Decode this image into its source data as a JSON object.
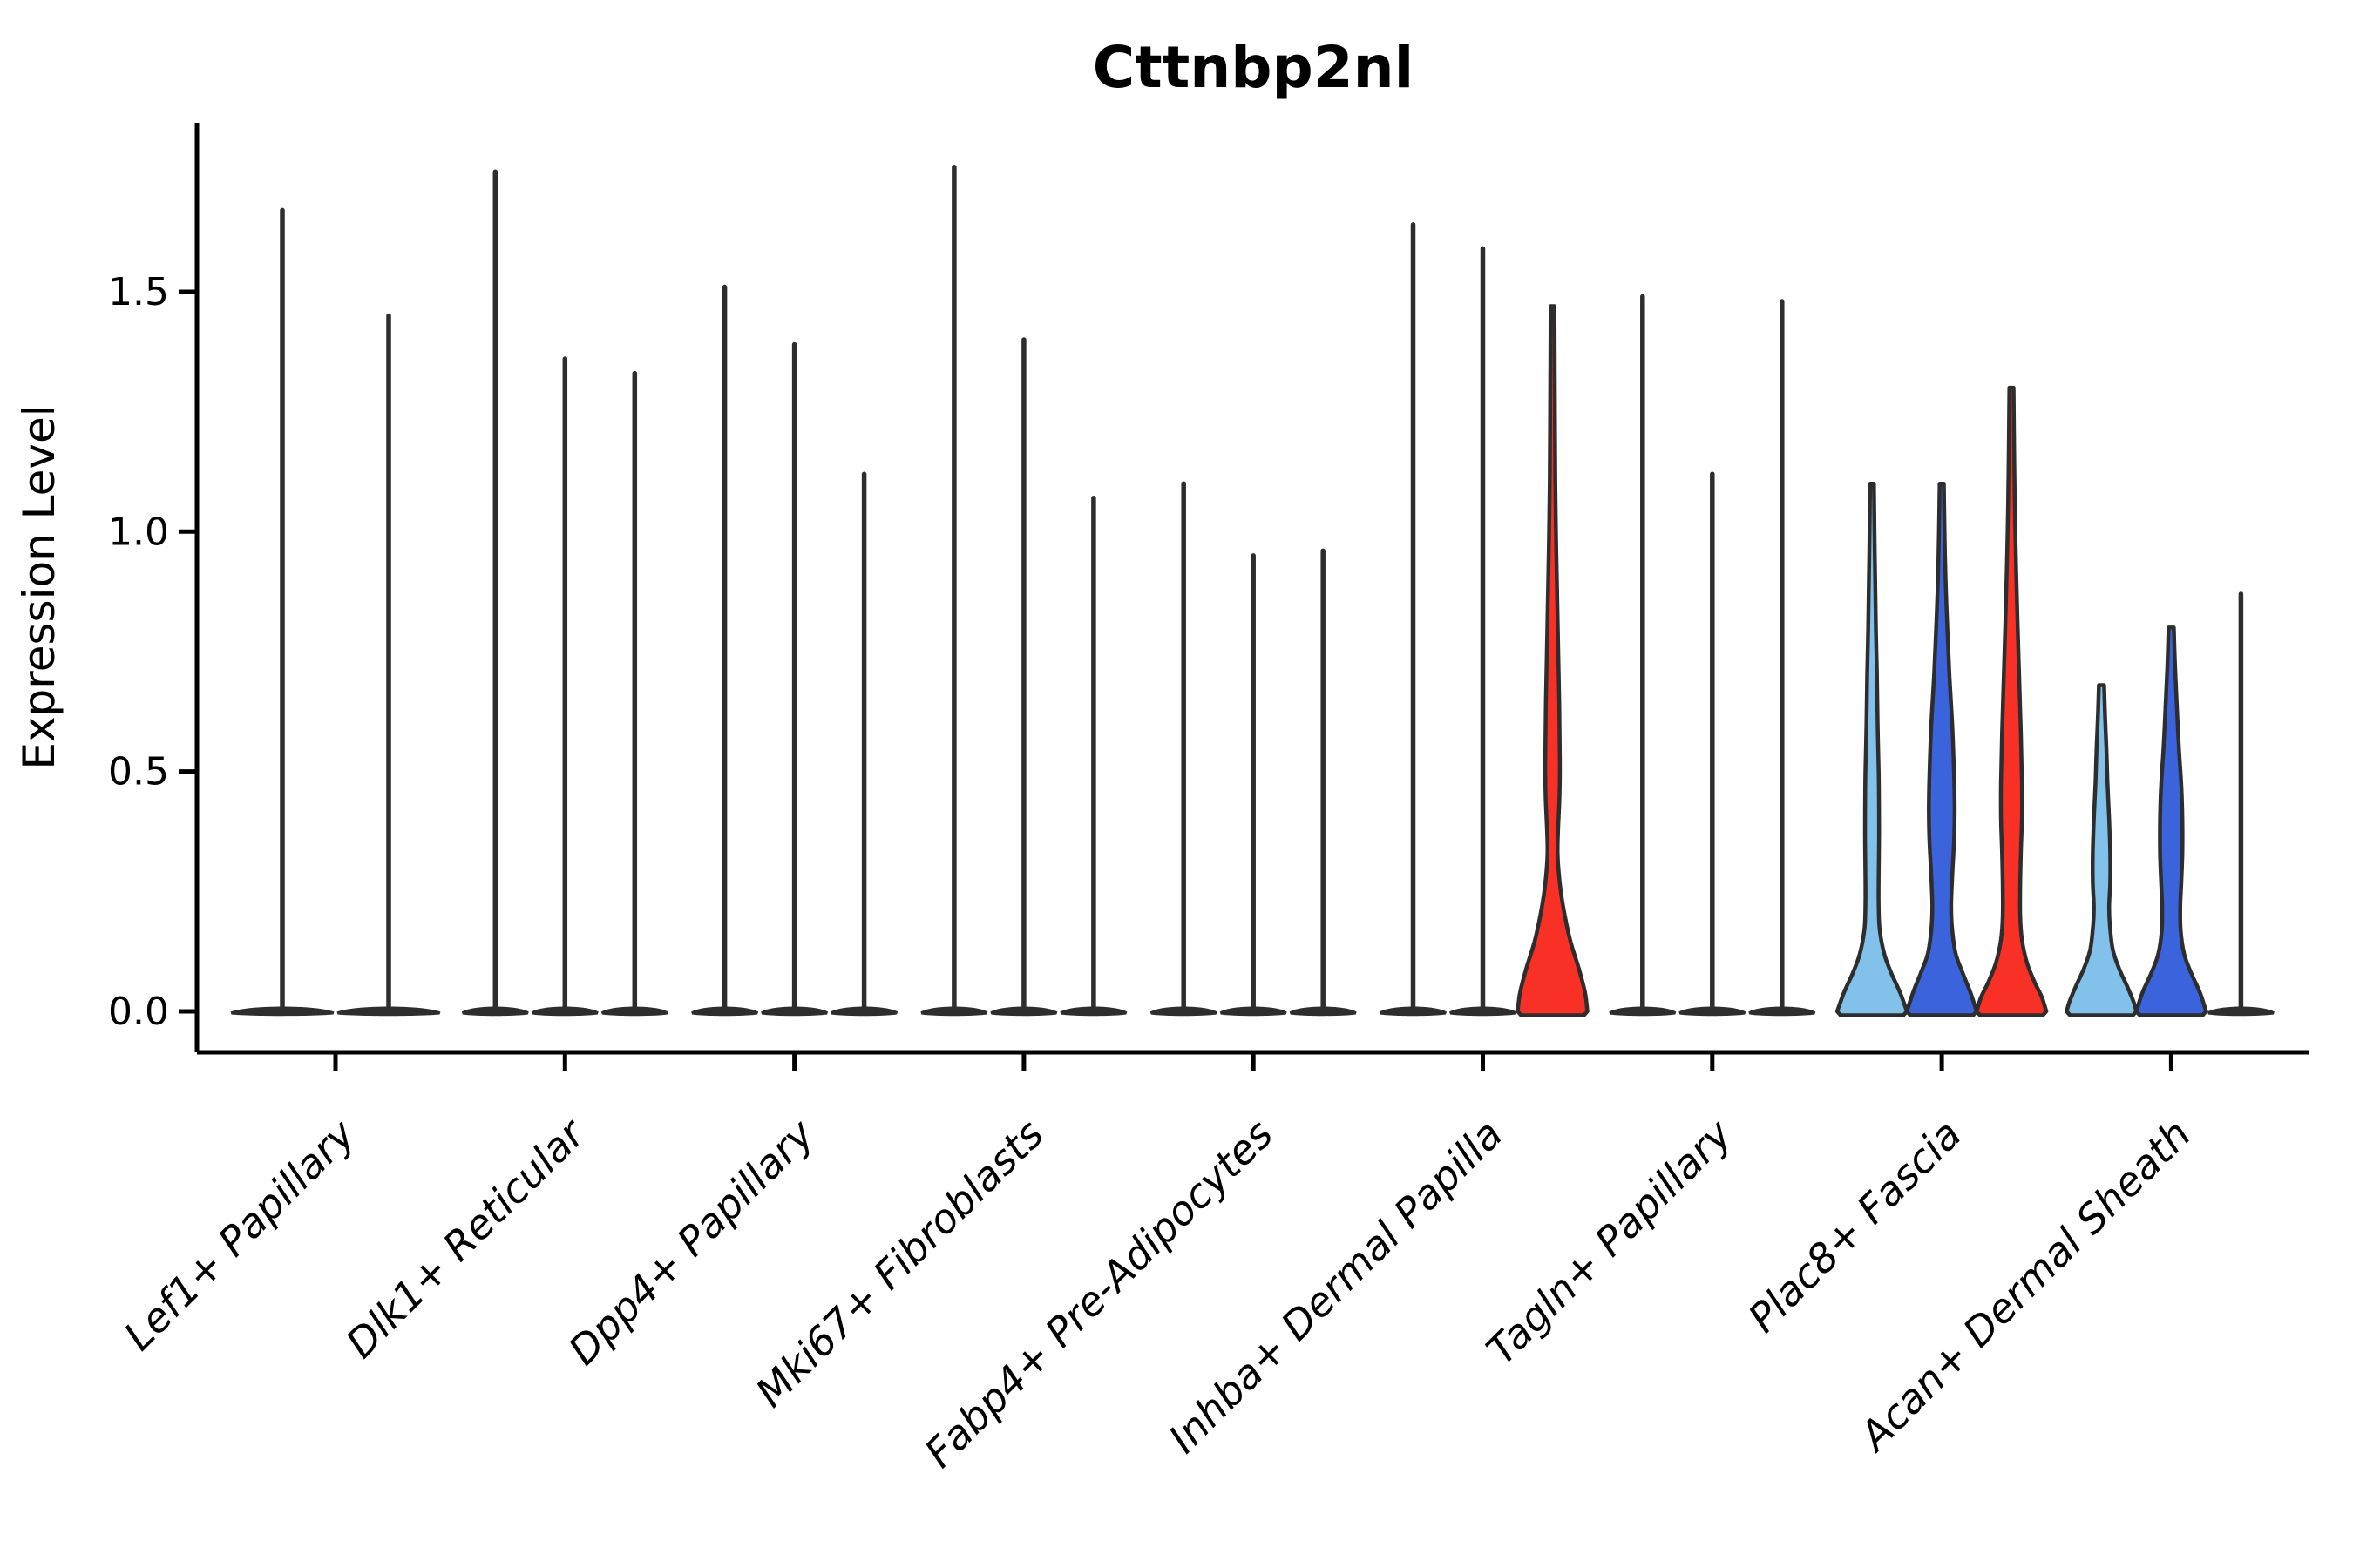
{
  "chart_data": {
    "type": "violin",
    "title": "Cttnbp2nl",
    "ylabel": "Expression Level",
    "xlabel": "",
    "legend": "none",
    "grid": false,
    "ylim": [
      -0.09,
      1.85
    ],
    "ytick_labels": [
      "0.0",
      "0.5",
      "1.0",
      "1.5"
    ],
    "ytick_values": [
      0.0,
      0.5,
      1.0,
      1.5
    ],
    "colors": {
      "slot_fills": [
        "#82C2EA",
        "#3B64DC",
        "#F93026"
      ],
      "outline": "#2D2D2D",
      "axis": "#000000",
      "text": "#000000",
      "background": "#FFFFFF"
    },
    "categories": [
      "Lef1+ Papillary",
      "Dlk1+ Reticular",
      "Dpp4+ Papillary",
      "Mki67+ Fibroblasts",
      "Fabp4+ Pre-Adipocytes",
      "Inhba+ Dermal Papilla",
      "Tagln+ Papillary",
      "Plac8+ Fascia",
      "Acan+ Dermal Sheath"
    ],
    "groups": [
      {
        "label": "Lef1+ Papillary",
        "violins": [
          {
            "slot": 0,
            "max": 1.67,
            "style": "thin"
          },
          {
            "slot": 1,
            "max": 1.45,
            "style": "thin"
          }
        ]
      },
      {
        "label": "Dlk1+ Reticular",
        "violins": [
          {
            "slot": 0,
            "max": 1.75,
            "style": "thin"
          },
          {
            "slot": 1,
            "max": 1.36,
            "style": "thin"
          },
          {
            "slot": 2,
            "max": 1.33,
            "style": "thin"
          }
        ]
      },
      {
        "label": "Dpp4+ Papillary",
        "violins": [
          {
            "slot": 0,
            "max": 1.51,
            "style": "thin"
          },
          {
            "slot": 1,
            "max": 1.39,
            "style": "thin"
          },
          {
            "slot": 2,
            "max": 1.12,
            "style": "thin"
          }
        ]
      },
      {
        "label": "Mki67+ Fibroblasts",
        "violins": [
          {
            "slot": 0,
            "max": 1.76,
            "style": "thin"
          },
          {
            "slot": 1,
            "max": 1.4,
            "style": "thin"
          },
          {
            "slot": 2,
            "max": 1.07,
            "style": "thin"
          }
        ]
      },
      {
        "label": "Fabp4+ Pre-Adipocytes",
        "violins": [
          {
            "slot": 0,
            "max": 1.1,
            "style": "thin"
          },
          {
            "slot": 1,
            "max": 0.95,
            "style": "thin"
          },
          {
            "slot": 2,
            "max": 0.96,
            "style": "thin"
          }
        ]
      },
      {
        "label": "Inhba+ Dermal Papilla",
        "violins": [
          {
            "slot": 0,
            "max": 1.64,
            "style": "thin"
          },
          {
            "slot": 1,
            "max": 1.59,
            "style": "thin"
          },
          {
            "slot": 2,
            "max": 1.47,
            "style": "filled",
            "profile": [
              [
                1.47,
                0.055
              ],
              [
                1.3,
                0.065
              ],
              [
                1.1,
                0.08
              ],
              [
                0.95,
                0.11
              ],
              [
                0.8,
                0.15
              ],
              [
                0.65,
                0.19
              ],
              [
                0.52,
                0.21
              ],
              [
                0.45,
                0.2
              ],
              [
                0.38,
                0.16
              ],
              [
                0.33,
                0.145
              ],
              [
                0.28,
                0.19
              ],
              [
                0.22,
                0.3
              ],
              [
                0.15,
                0.5
              ],
              [
                0.09,
                0.75
              ],
              [
                0.04,
                0.93
              ],
              [
                0.0,
                1.0
              ]
            ]
          }
        ]
      },
      {
        "label": "Tagln+ Papillary",
        "violins": [
          {
            "slot": 0,
            "max": 1.49,
            "style": "thin"
          },
          {
            "slot": 1,
            "max": 1.12,
            "style": "thin"
          },
          {
            "slot": 2,
            "max": 1.48,
            "style": "thin"
          }
        ]
      },
      {
        "label": "Plac8+ Fascia",
        "violins": [
          {
            "slot": 0,
            "max": 1.1,
            "style": "filled",
            "profile": [
              [
                1.1,
                0.055
              ],
              [
                1.0,
                0.07
              ],
              [
                0.9,
                0.09
              ],
              [
                0.8,
                0.11
              ],
              [
                0.7,
                0.14
              ],
              [
                0.6,
                0.16
              ],
              [
                0.5,
                0.19
              ],
              [
                0.42,
                0.2
              ],
              [
                0.35,
                0.2
              ],
              [
                0.28,
                0.19
              ],
              [
                0.22,
                0.19
              ],
              [
                0.17,
                0.22
              ],
              [
                0.12,
                0.35
              ],
              [
                0.08,
                0.55
              ],
              [
                0.04,
                0.8
              ],
              [
                0.0,
                1.0
              ]
            ]
          },
          {
            "slot": 1,
            "max": 1.1,
            "style": "filled",
            "profile": [
              [
                1.1,
                0.06
              ],
              [
                1.0,
                0.08
              ],
              [
                0.9,
                0.11
              ],
              [
                0.8,
                0.16
              ],
              [
                0.7,
                0.22
              ],
              [
                0.6,
                0.3
              ],
              [
                0.5,
                0.35
              ],
              [
                0.42,
                0.37
              ],
              [
                0.35,
                0.35
              ],
              [
                0.28,
                0.3
              ],
              [
                0.22,
                0.27
              ],
              [
                0.17,
                0.3
              ],
              [
                0.12,
                0.4
              ],
              [
                0.08,
                0.6
              ],
              [
                0.04,
                0.82
              ],
              [
                0.0,
                1.0
              ]
            ]
          },
          {
            "slot": 2,
            "max": 1.3,
            "style": "filled",
            "profile": [
              [
                1.3,
                0.06
              ],
              [
                1.15,
                0.08
              ],
              [
                1.0,
                0.11
              ],
              [
                0.85,
                0.16
              ],
              [
                0.7,
                0.22
              ],
              [
                0.58,
                0.27
              ],
              [
                0.48,
                0.3
              ],
              [
                0.4,
                0.3
              ],
              [
                0.33,
                0.27
              ],
              [
                0.26,
                0.25
              ],
              [
                0.2,
                0.25
              ],
              [
                0.15,
                0.3
              ],
              [
                0.1,
                0.45
              ],
              [
                0.06,
                0.67
              ],
              [
                0.03,
                0.87
              ],
              [
                0.0,
                1.0
              ]
            ]
          }
        ]
      },
      {
        "label": "Acan+ Dermal Sheath",
        "violins": [
          {
            "slot": 0,
            "max": 0.68,
            "style": "filled",
            "profile": [
              [
                0.68,
                0.075
              ],
              [
                0.62,
                0.1
              ],
              [
                0.55,
                0.14
              ],
              [
                0.48,
                0.17
              ],
              [
                0.4,
                0.22
              ],
              [
                0.33,
                0.25
              ],
              [
                0.27,
                0.25
              ],
              [
                0.22,
                0.22
              ],
              [
                0.18,
                0.24
              ],
              [
                0.13,
                0.32
              ],
              [
                0.09,
                0.5
              ],
              [
                0.05,
                0.75
              ],
              [
                0.02,
                0.92
              ],
              [
                0.0,
                1.0
              ]
            ]
          },
          {
            "slot": 1,
            "max": 0.8,
            "style": "filled",
            "profile": [
              [
                0.8,
                0.075
              ],
              [
                0.72,
                0.11
              ],
              [
                0.64,
                0.16
              ],
              [
                0.55,
                0.22
              ],
              [
                0.47,
                0.29
              ],
              [
                0.4,
                0.32
              ],
              [
                0.33,
                0.32
              ],
              [
                0.27,
                0.29
              ],
              [
                0.22,
                0.26
              ],
              [
                0.17,
                0.27
              ],
              [
                0.12,
                0.37
              ],
              [
                0.08,
                0.57
              ],
              [
                0.04,
                0.82
              ],
              [
                0.0,
                1.0
              ]
            ]
          },
          {
            "slot": 2,
            "max": 0.87,
            "style": "thin"
          }
        ]
      }
    ]
  }
}
